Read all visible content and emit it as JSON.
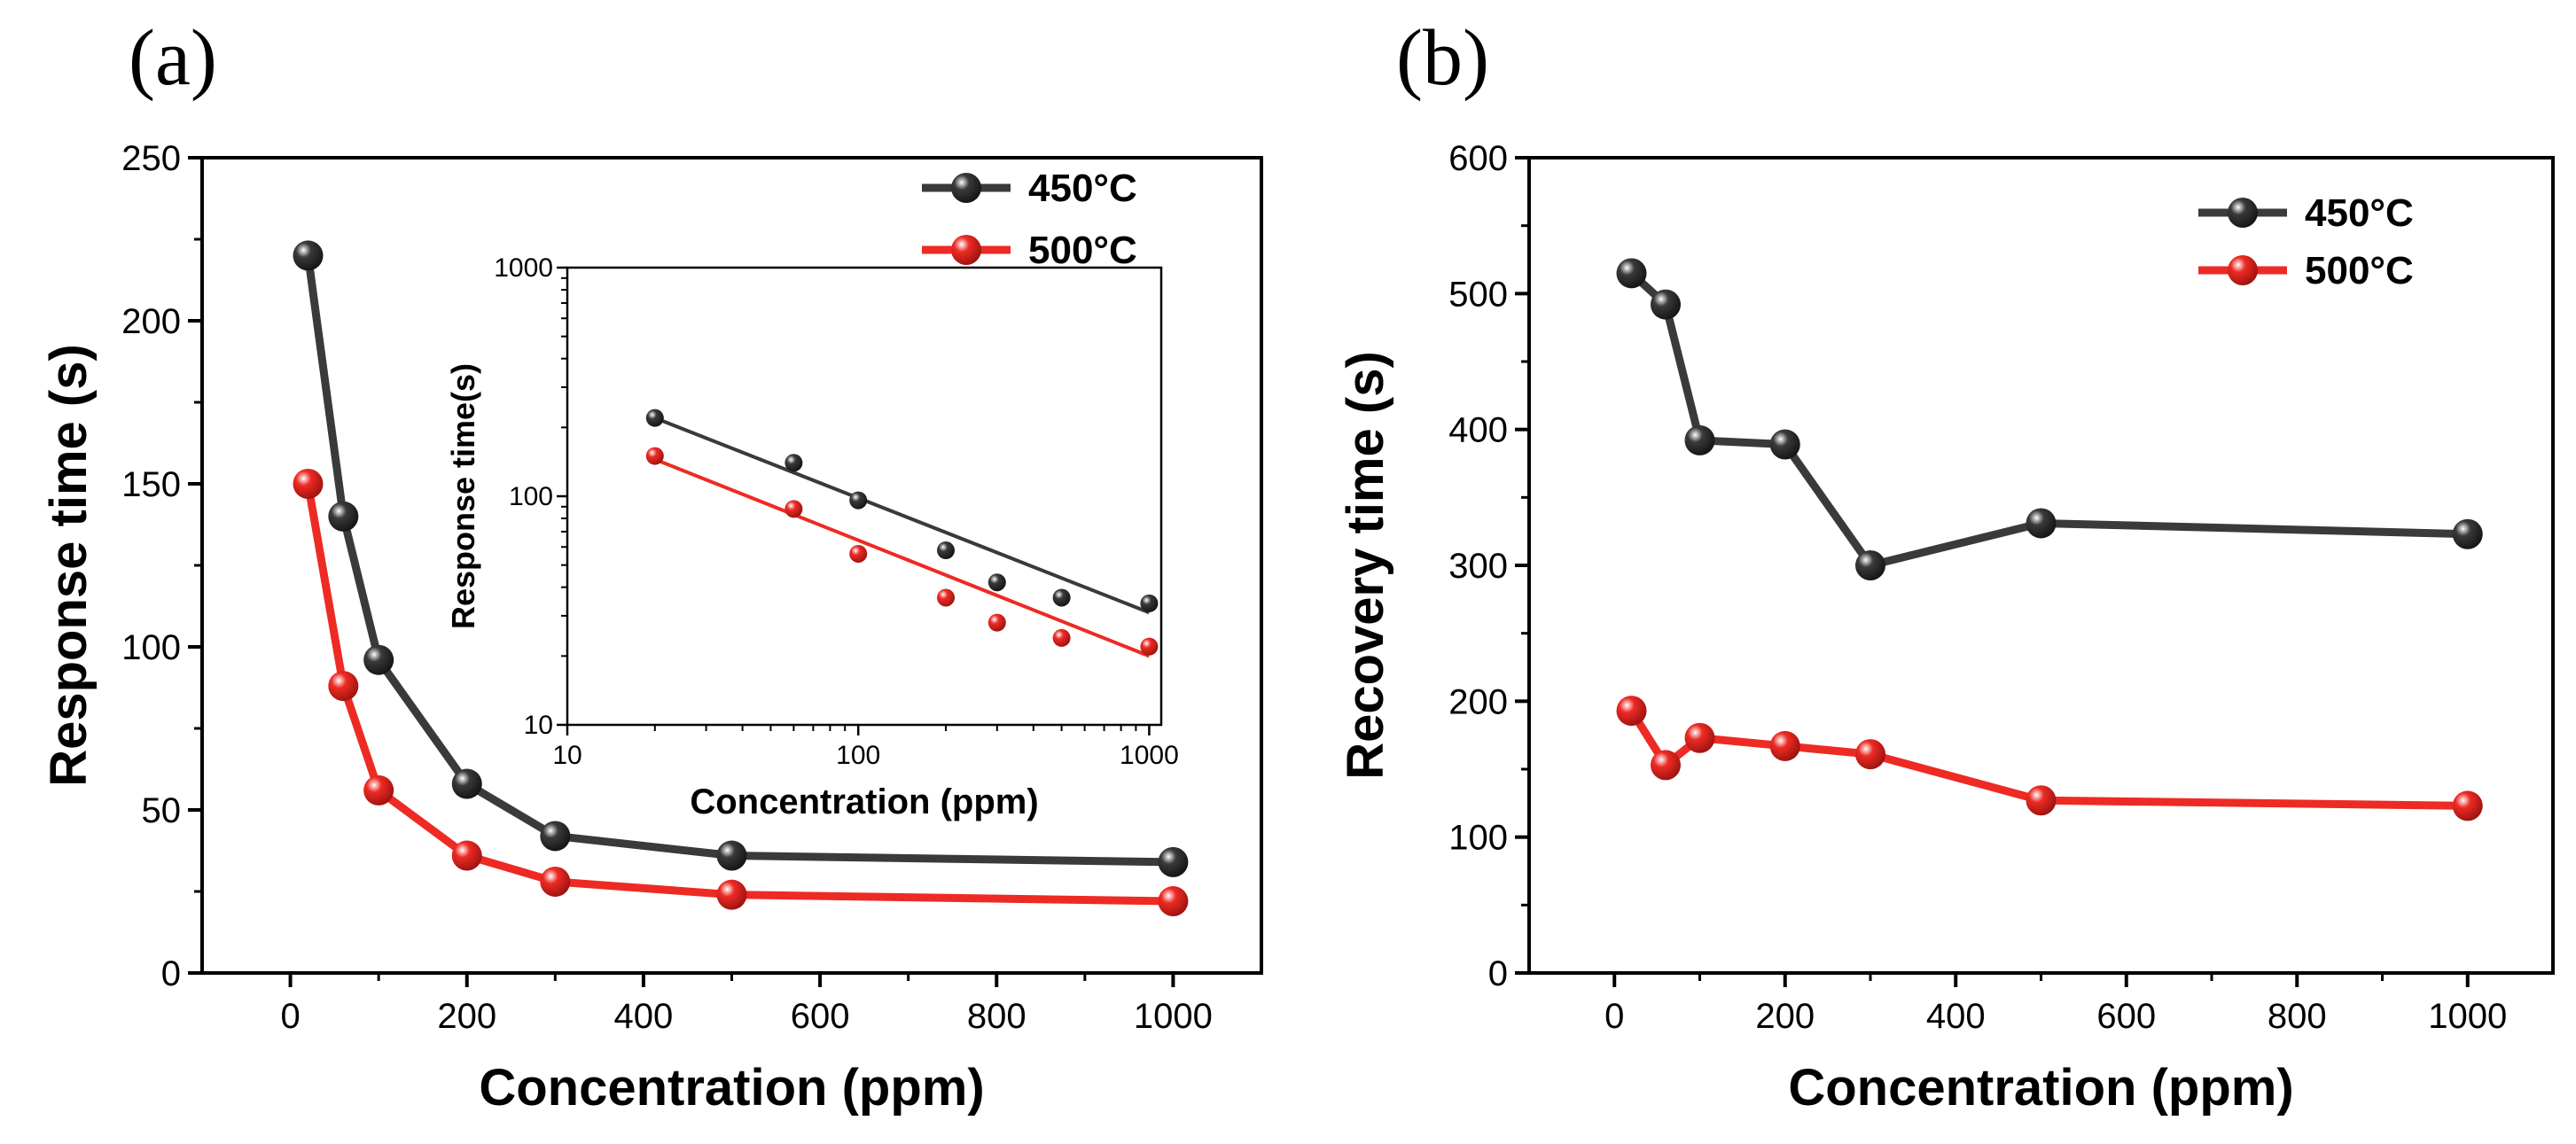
{
  "figure": {
    "panel_a_label": "(a)",
    "panel_b_label": "(b)"
  },
  "colors": {
    "series_450": "#3a3a3a",
    "series_500": "#ee2a24",
    "axis": "#000000",
    "background": "#ffffff"
  },
  "chart_data": [
    {
      "id": "panel-a",
      "type": "line",
      "title": "",
      "xlabel": "Concentration (ppm)",
      "ylabel": "Response time (s)",
      "xlim": [
        -100,
        1100
      ],
      "ylim": [
        0,
        250
      ],
      "xticks": [
        0,
        200,
        400,
        600,
        800,
        1000
      ],
      "xtick_labels": [
        "0",
        "200",
        "400",
        "600",
        "800",
        "1000"
      ],
      "yticks": [
        0,
        50,
        100,
        150,
        200,
        250
      ],
      "ytick_labels": [
        "0",
        "50",
        "100",
        "150",
        "200",
        "250"
      ],
      "legend_position": "top-right",
      "series": [
        {
          "name": "450°C",
          "x": [
            20,
            60,
            100,
            200,
            300,
            500,
            1000
          ],
          "y": [
            220,
            140,
            96,
            58,
            42,
            36,
            34
          ]
        },
        {
          "name": "500°C",
          "x": [
            20,
            60,
            100,
            200,
            300,
            500,
            1000
          ],
          "y": [
            150,
            88,
            56,
            36,
            28,
            24,
            22
          ]
        }
      ],
      "inset": {
        "type": "scatter",
        "xscale": "log",
        "yscale": "log",
        "xlabel": "Concentration (ppm)",
        "ylabel": "Response time(s)",
        "xlim": [
          10,
          1100
        ],
        "ylim": [
          10,
          1000
        ],
        "xticks": [
          10,
          100,
          1000
        ],
        "xtick_labels": [
          "10",
          "100",
          "1000"
        ],
        "yticks": [
          10,
          100,
          1000
        ],
        "ytick_labels": [
          "10",
          "100",
          "1000"
        ],
        "series": [
          {
            "name": "450°C",
            "x": [
              20,
              60,
              100,
              200,
              300,
              500,
              1000
            ],
            "y": [
              220,
              140,
              96,
              58,
              42,
              36,
              34
            ],
            "fit": {
              "x": [
                20,
                1000
              ],
              "y": [
                220,
                31
              ]
            }
          },
          {
            "name": "500°C",
            "x": [
              20,
              60,
              100,
              200,
              300,
              500,
              1000
            ],
            "y": [
              150,
              88,
              56,
              36,
              28,
              24,
              22
            ],
            "fit": {
              "x": [
                20,
                1000
              ],
              "y": [
                145,
                20
              ]
            }
          }
        ]
      }
    },
    {
      "id": "panel-b",
      "type": "line",
      "title": "",
      "xlabel": "Concentration (ppm)",
      "ylabel": "Recovery time (s)",
      "xlim": [
        -100,
        1100
      ],
      "ylim": [
        0,
        600
      ],
      "xticks": [
        0,
        200,
        400,
        600,
        800,
        1000
      ],
      "xtick_labels": [
        "0",
        "200",
        "400",
        "600",
        "800",
        "1000"
      ],
      "yticks": [
        0,
        100,
        200,
        300,
        400,
        500,
        600
      ],
      "ytick_labels": [
        "0",
        "100",
        "200",
        "300",
        "400",
        "500",
        "600"
      ],
      "legend_position": "top-right",
      "series": [
        {
          "name": "450°C",
          "x": [
            20,
            60,
            100,
            200,
            300,
            500,
            1000
          ],
          "y": [
            515,
            492,
            392,
            389,
            300,
            331,
            323
          ]
        },
        {
          "name": "500°C",
          "x": [
            20,
            60,
            100,
            200,
            300,
            500,
            1000
          ],
          "y": [
            193,
            153,
            173,
            167,
            161,
            127,
            123
          ]
        }
      ]
    }
  ]
}
